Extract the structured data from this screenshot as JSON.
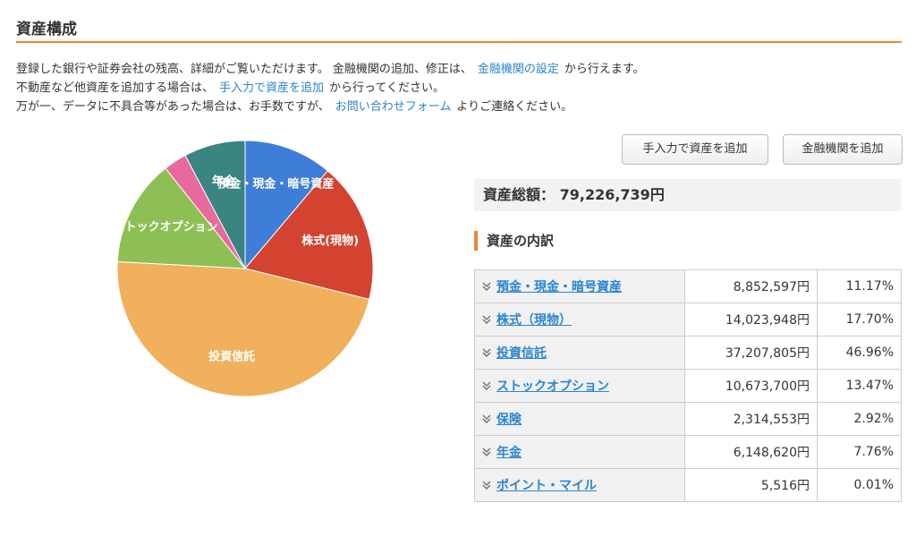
{
  "header": {
    "title": "資産構成"
  },
  "intro": [
    {
      "before": "登録した銀行や証券会社の残高、詳細がご覧いただけます。 金融機関の追加、修正は、",
      "link": "金融機関の設定",
      "after": "から行えます。"
    },
    {
      "before": "不動産など他資産を追加する場合は、",
      "link": "手入力で資産を追加",
      "after": "から行ってください。"
    },
    {
      "before": "万が一、データに不具合等があった場合は、お手数ですが、",
      "link": "お問い合わせフォーム",
      "after": "よりご連絡ください。"
    }
  ],
  "buttons": [
    "手入力で資産を追加",
    "金融機関を追加"
  ],
  "total": {
    "label": "資産総額：",
    "value": "79,226,739円"
  },
  "breakdown": {
    "title": "資産の内訳",
    "rows": [
      [
        "預金・現金・暗号資産",
        "8,852,597円",
        "11.17%"
      ],
      [
        "株式（現物）",
        "14,023,948円",
        "17.70%"
      ],
      [
        "投資信託",
        "37,207,805円",
        "46.96%"
      ],
      [
        "ストックオプション",
        "10,673,700円",
        "13.47%"
      ],
      [
        "保険",
        "2,314,553円",
        "2.92%"
      ],
      [
        "年金",
        "6,148,620円",
        "7.76%"
      ],
      [
        "ポイント・マイル",
        "5,516円",
        "0.01%"
      ]
    ]
  },
  "chart_data": {
    "type": "pie",
    "categories": [
      "預金・現金・暗号資産",
      "株式(現物)",
      "投資信託",
      "ストックオプション",
      null,
      "年金"
    ],
    "values": [
      8852597,
      14023948,
      37207805,
      10673700,
      2314553,
      6148620
    ],
    "colors": [
      "#3f7ed8",
      "#d4432f",
      "#f0b05c",
      "#8dbf55",
      "#e8699b",
      "#3a8581"
    ]
  }
}
